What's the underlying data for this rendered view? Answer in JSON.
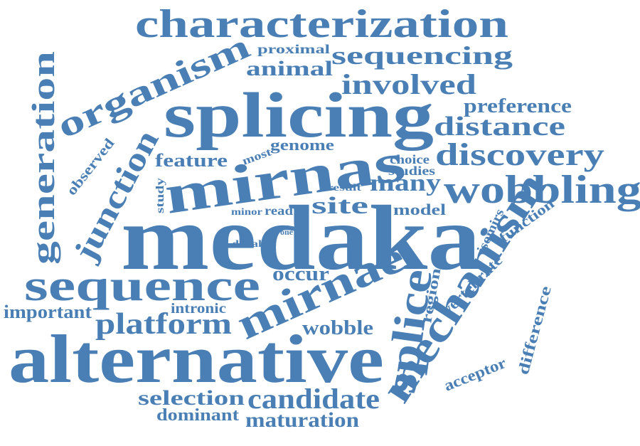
{
  "color": "#4a7fb5",
  "words": [
    {
      "text": "characterization"
    },
    {
      "text": "proximal"
    },
    {
      "text": "sequencing"
    },
    {
      "text": "organism"
    },
    {
      "text": "animal"
    },
    {
      "text": "involved"
    },
    {
      "text": "generation"
    },
    {
      "text": "splicing"
    },
    {
      "text": "preference"
    },
    {
      "text": "distance"
    },
    {
      "text": "junction"
    },
    {
      "text": "observed"
    },
    {
      "text": "most"
    },
    {
      "text": "genome"
    },
    {
      "text": "feature"
    },
    {
      "text": "mirnas"
    },
    {
      "text": "choice"
    },
    {
      "text": "studies"
    },
    {
      "text": "discovery"
    },
    {
      "text": "study"
    },
    {
      "text": "result"
    },
    {
      "text": "many"
    },
    {
      "text": "wobbling"
    },
    {
      "text": "minor"
    },
    {
      "text": "read"
    },
    {
      "text": "site"
    },
    {
      "text": "model"
    },
    {
      "text": "one"
    },
    {
      "text": "distal"
    },
    {
      "text": "medaka"
    },
    {
      "text": "isomirs"
    },
    {
      "text": "function"
    },
    {
      "text": "mechanism"
    },
    {
      "text": "sequence"
    },
    {
      "text": "occur"
    },
    {
      "text": "vertebrate"
    },
    {
      "text": "region"
    },
    {
      "text": "mirnae"
    },
    {
      "text": "important"
    },
    {
      "text": "intronic"
    },
    {
      "text": "platform"
    },
    {
      "text": "difference"
    },
    {
      "text": "wobble"
    },
    {
      "text": "splice"
    },
    {
      "text": "alternative"
    },
    {
      "text": "acceptor"
    },
    {
      "text": "selection"
    },
    {
      "text": "candidate"
    },
    {
      "text": "dominant"
    },
    {
      "text": "maturation"
    }
  ]
}
